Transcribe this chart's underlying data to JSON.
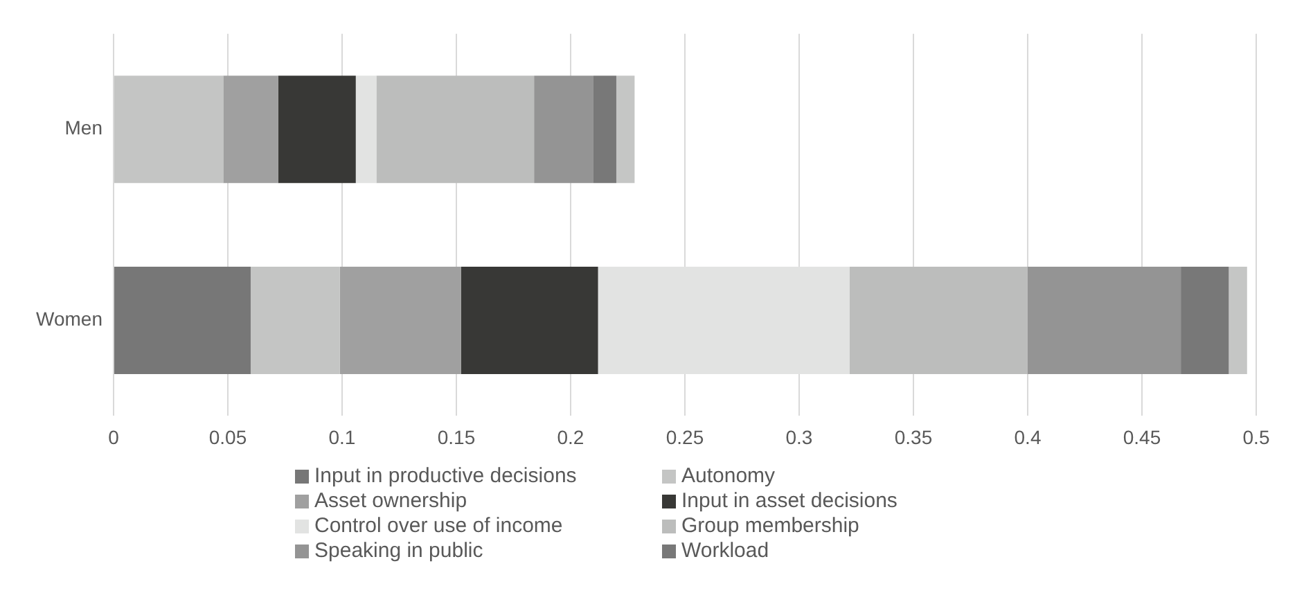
{
  "chart_data": {
    "type": "bar",
    "orientation": "horizontal",
    "stacked": true,
    "categories": [
      "Men",
      "Women"
    ],
    "series": [
      {
        "name": "Input in productive decisions",
        "color": "#777777",
        "values": [
          0,
          0.06
        ]
      },
      {
        "name": "Autonomy",
        "color": "#c4c5c4",
        "values": [
          0.048,
          0.039
        ]
      },
      {
        "name": "Asset ownership",
        "color": "#a0a0a0",
        "values": [
          0.024,
          0.053
        ]
      },
      {
        "name": "Input in asset decisions",
        "color": "#383836",
        "values": [
          0.034,
          0.06
        ]
      },
      {
        "name": "Control over use of income",
        "color": "#e2e3e2",
        "values": [
          0.009,
          0.11
        ]
      },
      {
        "name": "Group membership",
        "color": "#bcbdbc",
        "values": [
          0.069,
          0.078
        ]
      },
      {
        "name": "Speaking in public",
        "color": "#949494",
        "values": [
          0.026,
          0.067
        ]
      },
      {
        "name": "Workload",
        "color": "#787878",
        "values": [
          0.01,
          0.021
        ]
      },
      {
        "color": "#c5c6c5",
        "values": [
          0.008,
          0.008
        ]
      }
    ],
    "xlim": [
      0,
      0.5
    ],
    "xticks": [
      0,
      0.05,
      0.1,
      0.15,
      0.2,
      0.25,
      0.3,
      0.35,
      0.4,
      0.45,
      0.5
    ],
    "grid": "x",
    "legend": "bottom"
  }
}
